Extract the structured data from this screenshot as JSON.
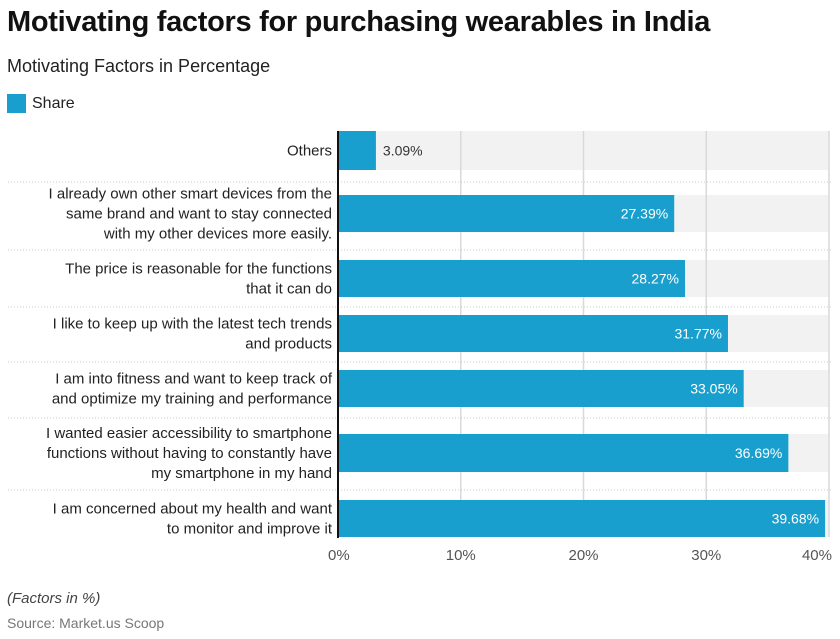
{
  "header": {
    "title": "Motivating factors for purchasing wearables in India",
    "subtitle": "Motivating Factors in Percentage"
  },
  "legend": {
    "items": [
      {
        "label": "Share",
        "color": "#189fcd"
      }
    ]
  },
  "footer": {
    "note": "(Factors in %)",
    "source": "Source: Market.us Scoop"
  },
  "colors": {
    "bar": "#189fcd",
    "track": "#f2f2f2",
    "grid": "#d9d9d9",
    "axis": "#111111",
    "label_inside": "#ffffff",
    "label_outside": "#333333"
  },
  "chart_data": {
    "type": "bar",
    "orientation": "horizontal",
    "title": "Motivating factors for purchasing wearables in India",
    "subtitle": "Motivating Factors in Percentage",
    "xlabel": "",
    "ylabel": "",
    "xlim": [
      0,
      40
    ],
    "x_ticks": [
      "0%",
      "10%",
      "20%",
      "30%",
      "40%"
    ],
    "x_tick_values": [
      0,
      10,
      20,
      30,
      40
    ],
    "grid": true,
    "legend_position": "top-left",
    "categories": [
      [
        "Others"
      ],
      [
        "I already own other smart devices from the",
        "same brand and want to stay connected",
        "with my other devices more easily."
      ],
      [
        "The price is reasonable for the functions",
        "that it can do"
      ],
      [
        "I like to keep up with the latest tech trends",
        "and products"
      ],
      [
        "I am into fitness and want to keep track of",
        "and optimize my training and performance"
      ],
      [
        "I wanted easier accessibility to smartphone",
        "functions without having to constantly have",
        "my smartphone in my hand"
      ],
      [
        "I am concerned about my health and want",
        "to monitor and improve it"
      ]
    ],
    "series": [
      {
        "name": "Share",
        "values": [
          3.09,
          27.39,
          28.27,
          31.77,
          33.05,
          36.69,
          39.68
        ],
        "labels": [
          "3.09%",
          "27.39%",
          "28.27%",
          "31.77%",
          "33.05%",
          "36.69%",
          "39.68%"
        ]
      }
    ]
  }
}
